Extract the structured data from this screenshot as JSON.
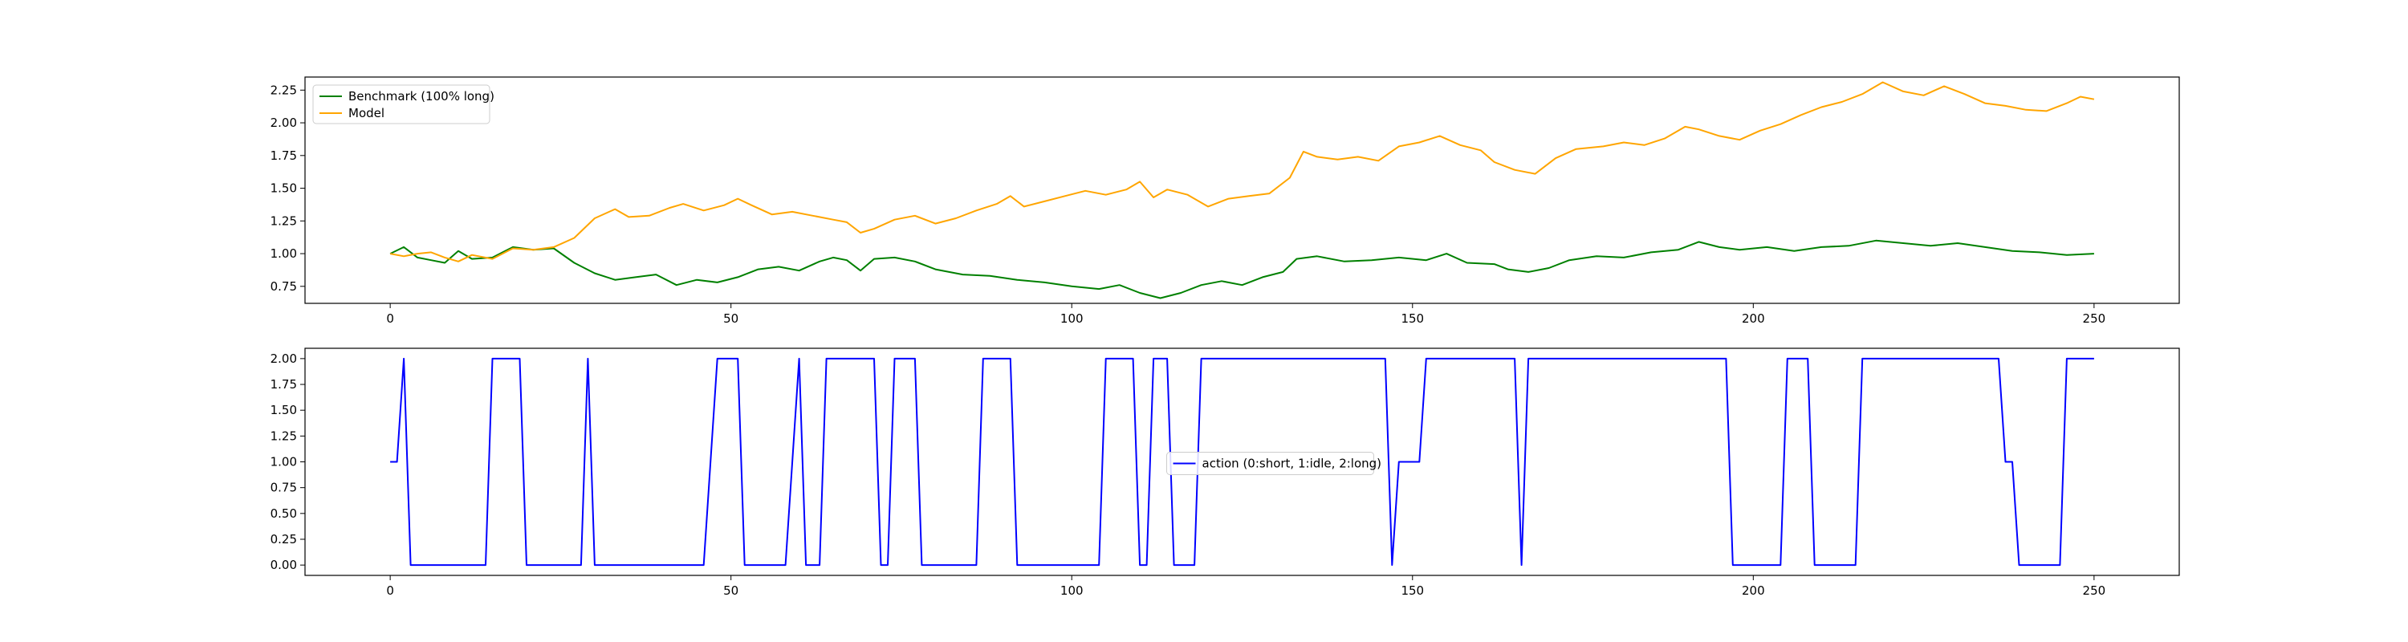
{
  "chart_data": [
    {
      "type": "line",
      "xlim": [
        -12.5,
        262.5
      ],
      "ylim": [
        0.62,
        2.35
      ],
      "xticks": [
        0,
        50,
        100,
        150,
        200,
        250
      ],
      "yticks": [
        0.75,
        1.0,
        1.25,
        1.5,
        1.75,
        2.0,
        2.25
      ],
      "legend_position": "upper-left",
      "series": [
        {
          "name": "Benchmark (100% long)",
          "color": "#008000",
          "points": [
            [
              0,
              1.0
            ],
            [
              2,
              1.05
            ],
            [
              4,
              0.97
            ],
            [
              6,
              0.95
            ],
            [
              8,
              0.93
            ],
            [
              10,
              1.02
            ],
            [
              12,
              0.96
            ],
            [
              15,
              0.97
            ],
            [
              18,
              1.05
            ],
            [
              21,
              1.03
            ],
            [
              24,
              1.04
            ],
            [
              27,
              0.93
            ],
            [
              30,
              0.85
            ],
            [
              33,
              0.8
            ],
            [
              36,
              0.82
            ],
            [
              39,
              0.84
            ],
            [
              42,
              0.76
            ],
            [
              45,
              0.8
            ],
            [
              48,
              0.78
            ],
            [
              51,
              0.82
            ],
            [
              54,
              0.88
            ],
            [
              57,
              0.9
            ],
            [
              60,
              0.87
            ],
            [
              63,
              0.94
            ],
            [
              65,
              0.97
            ],
            [
              67,
              0.95
            ],
            [
              69,
              0.87
            ],
            [
              71,
              0.96
            ],
            [
              74,
              0.97
            ],
            [
              77,
              0.94
            ],
            [
              80,
              0.88
            ],
            [
              84,
              0.84
            ],
            [
              88,
              0.83
            ],
            [
              92,
              0.8
            ],
            [
              96,
              0.78
            ],
            [
              100,
              0.75
            ],
            [
              104,
              0.73
            ],
            [
              107,
              0.76
            ],
            [
              110,
              0.7
            ],
            [
              113,
              0.66
            ],
            [
              116,
              0.7
            ],
            [
              119,
              0.76
            ],
            [
              122,
              0.79
            ],
            [
              125,
              0.76
            ],
            [
              128,
              0.82
            ],
            [
              131,
              0.86
            ],
            [
              133,
              0.96
            ],
            [
              136,
              0.98
            ],
            [
              140,
              0.94
            ],
            [
              144,
              0.95
            ],
            [
              148,
              0.97
            ],
            [
              152,
              0.95
            ],
            [
              155,
              1.0
            ],
            [
              158,
              0.93
            ],
            [
              162,
              0.92
            ],
            [
              164,
              0.88
            ],
            [
              167,
              0.86
            ],
            [
              170,
              0.89
            ],
            [
              173,
              0.95
            ],
            [
              177,
              0.98
            ],
            [
              181,
              0.97
            ],
            [
              185,
              1.01
            ],
            [
              189,
              1.03
            ],
            [
              192,
              1.09
            ],
            [
              195,
              1.05
            ],
            [
              198,
              1.03
            ],
            [
              202,
              1.05
            ],
            [
              206,
              1.02
            ],
            [
              210,
              1.05
            ],
            [
              214,
              1.06
            ],
            [
              218,
              1.1
            ],
            [
              222,
              1.08
            ],
            [
              226,
              1.06
            ],
            [
              230,
              1.08
            ],
            [
              234,
              1.05
            ],
            [
              238,
              1.02
            ],
            [
              242,
              1.01
            ],
            [
              246,
              0.99
            ],
            [
              250,
              1.0
            ]
          ]
        },
        {
          "name": "Model",
          "color": "#ffa500",
          "points": [
            [
              0,
              1.0
            ],
            [
              2,
              0.98
            ],
            [
              4,
              1.0
            ],
            [
              6,
              1.01
            ],
            [
              8,
              0.97
            ],
            [
              10,
              0.94
            ],
            [
              12,
              0.99
            ],
            [
              15,
              0.96
            ],
            [
              18,
              1.04
            ],
            [
              21,
              1.03
            ],
            [
              24,
              1.05
            ],
            [
              27,
              1.12
            ],
            [
              30,
              1.27
            ],
            [
              33,
              1.34
            ],
            [
              35,
              1.28
            ],
            [
              38,
              1.29
            ],
            [
              41,
              1.35
            ],
            [
              43,
              1.38
            ],
            [
              46,
              1.33
            ],
            [
              49,
              1.37
            ],
            [
              51,
              1.42
            ],
            [
              53,
              1.37
            ],
            [
              56,
              1.3
            ],
            [
              59,
              1.32
            ],
            [
              62,
              1.29
            ],
            [
              65,
              1.26
            ],
            [
              67,
              1.24
            ],
            [
              69,
              1.16
            ],
            [
              71,
              1.19
            ],
            [
              74,
              1.26
            ],
            [
              77,
              1.29
            ],
            [
              80,
              1.23
            ],
            [
              83,
              1.27
            ],
            [
              86,
              1.33
            ],
            [
              89,
              1.38
            ],
            [
              91,
              1.44
            ],
            [
              93,
              1.36
            ],
            [
              96,
              1.4
            ],
            [
              99,
              1.44
            ],
            [
              102,
              1.48
            ],
            [
              105,
              1.45
            ],
            [
              108,
              1.49
            ],
            [
              110,
              1.55
            ],
            [
              112,
              1.43
            ],
            [
              114,
              1.49
            ],
            [
              117,
              1.45
            ],
            [
              120,
              1.36
            ],
            [
              123,
              1.42
            ],
            [
              126,
              1.44
            ],
            [
              129,
              1.46
            ],
            [
              132,
              1.58
            ],
            [
              134,
              1.78
            ],
            [
              136,
              1.74
            ],
            [
              139,
              1.72
            ],
            [
              142,
              1.74
            ],
            [
              145,
              1.71
            ],
            [
              148,
              1.82
            ],
            [
              151,
              1.85
            ],
            [
              154,
              1.9
            ],
            [
              157,
              1.83
            ],
            [
              160,
              1.79
            ],
            [
              162,
              1.7
            ],
            [
              165,
              1.64
            ],
            [
              168,
              1.61
            ],
            [
              171,
              1.73
            ],
            [
              174,
              1.8
            ],
            [
              178,
              1.82
            ],
            [
              181,
              1.85
            ],
            [
              184,
              1.83
            ],
            [
              187,
              1.88
            ],
            [
              190,
              1.97
            ],
            [
              192,
              1.95
            ],
            [
              195,
              1.9
            ],
            [
              198,
              1.87
            ],
            [
              201,
              1.94
            ],
            [
              204,
              1.99
            ],
            [
              207,
              2.06
            ],
            [
              210,
              2.12
            ],
            [
              213,
              2.16
            ],
            [
              216,
              2.22
            ],
            [
              219,
              2.31
            ],
            [
              222,
              2.24
            ],
            [
              225,
              2.21
            ],
            [
              228,
              2.28
            ],
            [
              231,
              2.22
            ],
            [
              234,
              2.15
            ],
            [
              237,
              2.13
            ],
            [
              240,
              2.1
            ],
            [
              243,
              2.09
            ],
            [
              246,
              2.15
            ],
            [
              248,
              2.2
            ],
            [
              250,
              2.18
            ]
          ]
        }
      ]
    },
    {
      "type": "line",
      "xlim": [
        -12.5,
        262.5
      ],
      "ylim": [
        -0.1,
        2.1
      ],
      "xticks": [
        0,
        50,
        100,
        150,
        200,
        250
      ],
      "yticks": [
        0.0,
        0.25,
        0.5,
        0.75,
        1.0,
        1.25,
        1.5,
        1.75,
        2.0
      ],
      "legend_position": "center",
      "series": [
        {
          "name": "action (0:short, 1:idle, 2:long)",
          "color": "#0000ff",
          "points": [
            [
              0,
              1
            ],
            [
              1,
              1
            ],
            [
              2,
              2
            ],
            [
              3,
              0
            ],
            [
              14,
              0
            ],
            [
              15,
              2
            ],
            [
              19,
              2
            ],
            [
              20,
              0
            ],
            [
              28,
              0
            ],
            [
              29,
              2
            ],
            [
              30,
              0
            ],
            [
              46,
              0
            ],
            [
              48,
              2
            ],
            [
              51,
              2
            ],
            [
              52,
              0
            ],
            [
              58,
              0
            ],
            [
              60,
              2
            ],
            [
              61,
              0
            ],
            [
              63,
              0
            ],
            [
              64,
              2
            ],
            [
              71,
              2
            ],
            [
              72,
              0
            ],
            [
              73,
              0
            ],
            [
              74,
              2
            ],
            [
              77,
              2
            ],
            [
              78,
              0
            ],
            [
              86,
              0
            ],
            [
              87,
              2
            ],
            [
              91,
              2
            ],
            [
              92,
              0
            ],
            [
              104,
              0
            ],
            [
              105,
              2
            ],
            [
              109,
              2
            ],
            [
              110,
              0
            ],
            [
              111,
              0
            ],
            [
              112,
              2
            ],
            [
              114,
              2
            ],
            [
              115,
              0
            ],
            [
              118,
              0
            ],
            [
              119,
              2
            ],
            [
              146,
              2
            ],
            [
              147,
              0
            ],
            [
              148,
              1
            ],
            [
              151,
              1
            ],
            [
              152,
              2
            ],
            [
              165,
              2
            ],
            [
              166,
              0
            ],
            [
              167,
              2
            ],
            [
              196,
              2
            ],
            [
              197,
              0
            ],
            [
              204,
              0
            ],
            [
              205,
              2
            ],
            [
              208,
              2
            ],
            [
              209,
              0
            ],
            [
              215,
              0
            ],
            [
              216,
              2
            ],
            [
              236,
              2
            ],
            [
              237,
              1
            ],
            [
              238,
              1
            ],
            [
              239,
              0
            ],
            [
              245,
              0
            ],
            [
              246,
              2
            ],
            [
              250,
              2
            ]
          ]
        }
      ]
    }
  ]
}
